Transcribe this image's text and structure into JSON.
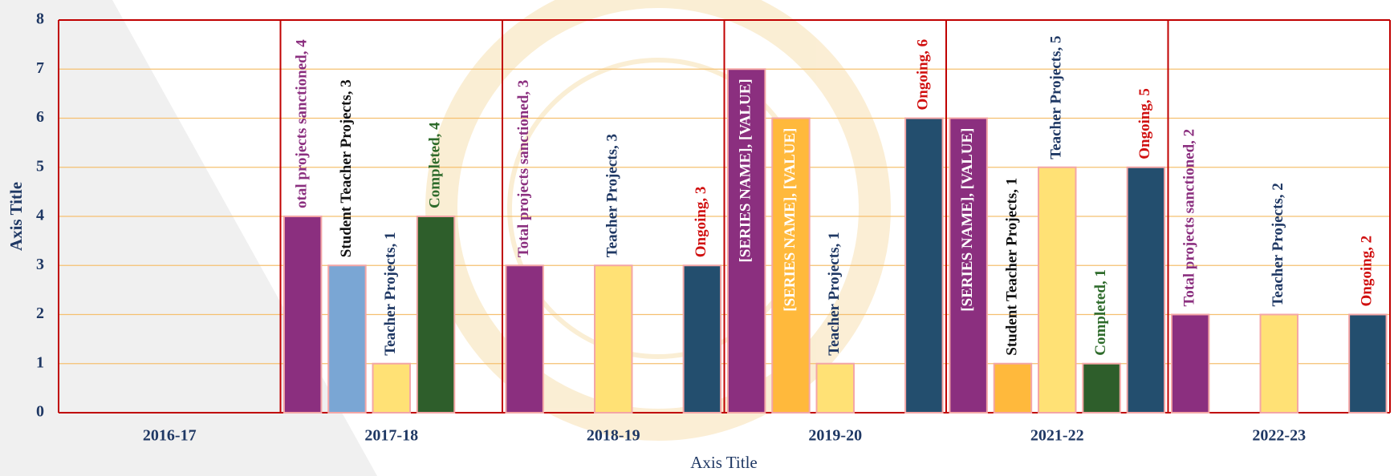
{
  "chart_data": {
    "type": "bar",
    "x_label": "Axis Title",
    "y_label": "Axis Title",
    "categories": [
      "2016-17",
      "2017-18",
      "2018-19",
      "2019-20",
      "2021-22",
      "2022-23"
    ],
    "series": [
      {
        "name": "Total projects sanctioned",
        "color": "#8b2f7f",
        "label_color": "#8b2f7f",
        "values": [
          null,
          4,
          3,
          7,
          6,
          2
        ],
        "value_labels": [
          null,
          "otal projects sanctioned, 4",
          "Total projects sanctioned, 3",
          "[SERIES NAME], [VALUE]",
          "[SERIES NAME], [VALUE]",
          "Total projects sanctioned, 2"
        ],
        "label_inside": [
          false,
          false,
          false,
          true,
          true,
          false
        ]
      },
      {
        "name": "Student Teacher Projects",
        "color": "#ffb93c",
        "label_color": "#111111",
        "colors": [
          null,
          "#7aa6d4",
          null,
          "#ffb93c",
          "#ffb93c",
          null
        ],
        "values": [
          null,
          3,
          null,
          6,
          1,
          null
        ],
        "value_labels": [
          null,
          "Student  Teacher Projects, 3",
          null,
          "[SERIES NAME], [VALUE]",
          "Student  Teacher Projects, 1",
          null
        ],
        "label_inside": [
          false,
          false,
          false,
          true,
          false,
          false
        ]
      },
      {
        "name": "Teacher Projects",
        "color": "#ffe175",
        "label_color": "#1f3864",
        "values": [
          null,
          1,
          3,
          1,
          5,
          2
        ],
        "value_labels": [
          null,
          "Teacher Projects, 1",
          "Teacher Projects, 3",
          "Teacher Projects, 1",
          "Teacher Projects, 5",
          "Teacher Projects, 2"
        ]
      },
      {
        "name": "Completed",
        "color": "#2e5e2b",
        "label_color": "#2e6b2b",
        "values": [
          null,
          4,
          null,
          null,
          1,
          null
        ],
        "value_labels": [
          null,
          "Completed, 4",
          null,
          null,
          "Completed, 1",
          null
        ]
      },
      {
        "name": "Ongoing",
        "color": "#234e6e",
        "label_color": "#d01010",
        "values": [
          null,
          null,
          3,
          6,
          5,
          2
        ],
        "value_labels": [
          null,
          null,
          "Ongoing, 3",
          "Ongoing, 6",
          "Ongoing, 5",
          "Ongoing, 2"
        ]
      }
    ],
    "ylim": [
      0,
      8
    ],
    "yticks": [
      0,
      1,
      2,
      3,
      4,
      5,
      6,
      7,
      8
    ],
    "grid": true
  }
}
